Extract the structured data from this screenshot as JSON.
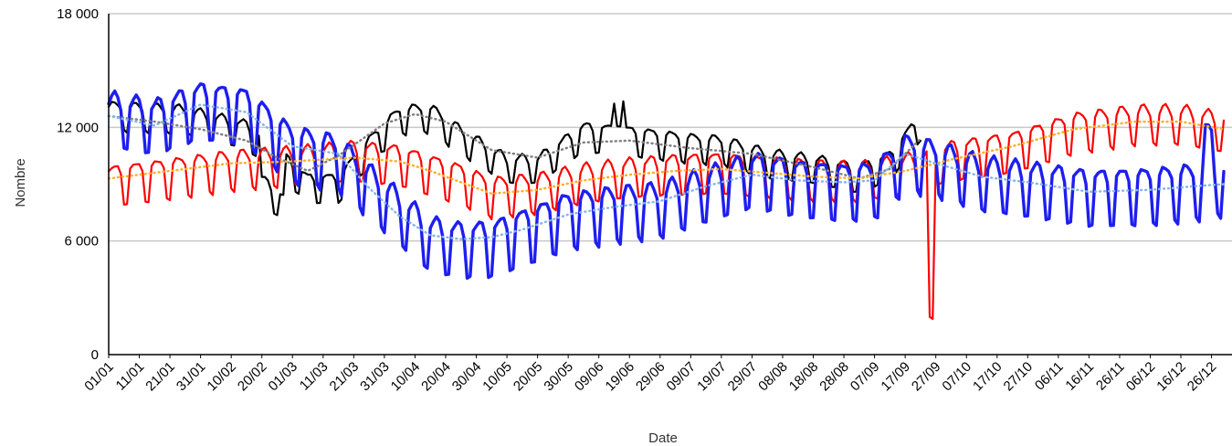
{
  "chart_data": {
    "type": "line",
    "title": "",
    "xlabel": "Date",
    "ylabel": "Nombre",
    "ylim": [
      0,
      18000
    ],
    "y_ticks": [
      0,
      6000,
      12000,
      18000
    ],
    "y_tick_labels": [
      "0",
      "6 000",
      "12 000",
      "18 000"
    ],
    "x_tick_labels": [
      "01/01",
      "11/01",
      "21/01",
      "31/01",
      "10/02",
      "20/02",
      "01/03",
      "11/03",
      "21/03",
      "31/03",
      "10/04",
      "20/04",
      "30/04",
      "10/05",
      "20/05",
      "30/05",
      "09/06",
      "19/06",
      "29/06",
      "09/07",
      "19/07",
      "29/07",
      "08/08",
      "18/08",
      "28/08",
      "07/09",
      "17/09",
      "27/09",
      "07/10",
      "17/10",
      "27/10",
      "06/11",
      "16/11",
      "26/11",
      "06/12",
      "16/12",
      "26/12"
    ],
    "x_range_days": [
      0,
      364
    ],
    "grid": "horizontal",
    "legend": "none",
    "series": [
      {
        "color": "#000000",
        "style": "solid",
        "day_range": [
          0,
          265
        ],
        "weekly_amplitude": 1300,
        "anchors": [
          [
            0,
            12800
          ],
          [
            25,
            12600
          ],
          [
            45,
            11800
          ],
          [
            55,
            10500
          ],
          [
            65,
            9000
          ],
          [
            75,
            9000
          ],
          [
            85,
            11000
          ],
          [
            95,
            12600
          ],
          [
            105,
            12700
          ],
          [
            115,
            11500
          ],
          [
            130,
            10000
          ],
          [
            140,
            10000
          ],
          [
            155,
            11700
          ],
          [
            170,
            11500
          ],
          [
            190,
            11100
          ],
          [
            200,
            11000
          ],
          [
            215,
            10300
          ],
          [
            230,
            10000
          ],
          [
            245,
            9500
          ],
          [
            255,
            10200
          ],
          [
            265,
            12300
          ]
        ],
        "events": [
          [
            50,
            57,
            -2200
          ],
          [
            165,
            168,
            1500
          ]
        ]
      },
      {
        "color": "#ff0000",
        "style": "solid",
        "day_range": [
          0,
          364
        ],
        "weekly_amplitude": 1800,
        "anchors": [
          [
            0,
            9200
          ],
          [
            20,
            9600
          ],
          [
            40,
            10000
          ],
          [
            60,
            10200
          ],
          [
            80,
            10500
          ],
          [
            95,
            10300
          ],
          [
            105,
            9800
          ],
          [
            115,
            9300
          ],
          [
            125,
            8600
          ],
          [
            140,
            8800
          ],
          [
            155,
            9300
          ],
          [
            170,
            9600
          ],
          [
            185,
            9800
          ],
          [
            200,
            9900
          ],
          [
            215,
            9700
          ],
          [
            230,
            9500
          ],
          [
            245,
            9400
          ],
          [
            260,
            9800
          ],
          [
            275,
            10500
          ],
          [
            295,
            11000
          ],
          [
            315,
            12000
          ],
          [
            335,
            12400
          ],
          [
            350,
            12400
          ],
          [
            364,
            12000
          ]
        ],
        "events": [
          [
            268,
            269,
            -9000
          ]
        ]
      },
      {
        "color": "#1e1ef0",
        "style": "solid-thick",
        "day_range": [
          0,
          364
        ],
        "weekly_amplitude": 2500,
        "anchors": [
          [
            0,
            12800
          ],
          [
            15,
            12400
          ],
          [
            30,
            13300
          ],
          [
            45,
            13000
          ],
          [
            60,
            11000
          ],
          [
            75,
            10500
          ],
          [
            85,
            9000
          ],
          [
            95,
            7600
          ],
          [
            105,
            6200
          ],
          [
            115,
            5900
          ],
          [
            125,
            6000
          ],
          [
            135,
            6600
          ],
          [
            150,
            7500
          ],
          [
            165,
            7800
          ],
          [
            180,
            8000
          ],
          [
            195,
            8800
          ],
          [
            210,
            9600
          ],
          [
            225,
            9200
          ],
          [
            240,
            9000
          ],
          [
            250,
            9100
          ],
          [
            260,
            10500
          ],
          [
            270,
            10200
          ],
          [
            285,
            9400
          ],
          [
            300,
            9100
          ],
          [
            320,
            8700
          ],
          [
            340,
            8800
          ],
          [
            355,
            9000
          ],
          [
            364,
            9200
          ]
        ],
        "events": [
          [
            358,
            360,
            2000
          ]
        ]
      },
      {
        "color": "#808080",
        "style": "dotted",
        "day_range": [
          0,
          265
        ],
        "anchors": [
          [
            0,
            12600
          ],
          [
            15,
            12300
          ],
          [
            30,
            11900
          ],
          [
            45,
            11300
          ],
          [
            55,
            10400
          ],
          [
            65,
            9700
          ],
          [
            75,
            10500
          ],
          [
            90,
            12200
          ],
          [
            100,
            12700
          ],
          [
            110,
            12300
          ],
          [
            125,
            10800
          ],
          [
            140,
            10400
          ],
          [
            155,
            11200
          ],
          [
            170,
            11300
          ],
          [
            190,
            10900
          ],
          [
            210,
            10600
          ],
          [
            230,
            9900
          ],
          [
            245,
            9300
          ],
          [
            255,
            9800
          ],
          [
            265,
            11400
          ]
        ]
      },
      {
        "color": "#ffb030",
        "style": "dotted",
        "day_range": [
          0,
          364
        ],
        "anchors": [
          [
            0,
            9300
          ],
          [
            20,
            9700
          ],
          [
            40,
            10100
          ],
          [
            60,
            10200
          ],
          [
            80,
            10400
          ],
          [
            95,
            10200
          ],
          [
            105,
            9700
          ],
          [
            115,
            9100
          ],
          [
            125,
            8500
          ],
          [
            140,
            8700
          ],
          [
            155,
            9200
          ],
          [
            170,
            9500
          ],
          [
            185,
            9700
          ],
          [
            200,
            9800
          ],
          [
            215,
            9600
          ],
          [
            230,
            9400
          ],
          [
            245,
            9300
          ],
          [
            260,
            9700
          ],
          [
            275,
            10300
          ],
          [
            295,
            11000
          ],
          [
            315,
            11900
          ],
          [
            335,
            12300
          ],
          [
            350,
            12300
          ],
          [
            364,
            11900
          ]
        ]
      },
      {
        "color": "#87b7e8",
        "style": "dotted",
        "day_range": [
          0,
          364
        ],
        "anchors": [
          [
            0,
            12600
          ],
          [
            15,
            12100
          ],
          [
            30,
            13200
          ],
          [
            45,
            12800
          ],
          [
            60,
            11000
          ],
          [
            75,
            10600
          ],
          [
            85,
            8800
          ],
          [
            95,
            7300
          ],
          [
            105,
            6300
          ],
          [
            115,
            6100
          ],
          [
            125,
            6200
          ],
          [
            135,
            6600
          ],
          [
            150,
            7400
          ],
          [
            165,
            7800
          ],
          [
            180,
            8100
          ],
          [
            195,
            8900
          ],
          [
            210,
            9500
          ],
          [
            225,
            9200
          ],
          [
            240,
            9100
          ],
          [
            250,
            9200
          ],
          [
            260,
            10600
          ],
          [
            270,
            10100
          ],
          [
            285,
            9400
          ],
          [
            300,
            9100
          ],
          [
            320,
            8600
          ],
          [
            340,
            8700
          ],
          [
            355,
            8900
          ],
          [
            364,
            9000
          ]
        ]
      }
    ]
  }
}
